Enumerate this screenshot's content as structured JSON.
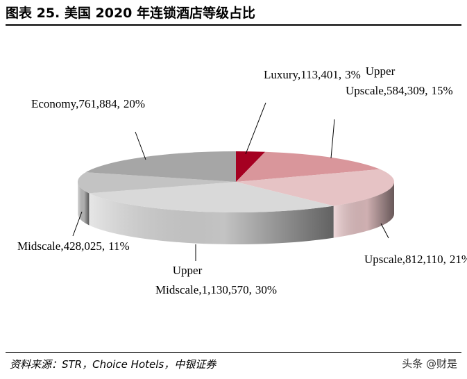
{
  "title": "图表 25. 美国 2020 年连锁酒店等级占比",
  "source": "资料来源：STR，Choice Hotels，中银证券",
  "watermark": "头条 @财是",
  "chart_data": {
    "type": "pie3d",
    "categories": [
      "Luxury",
      "Upper Upscale",
      "Upscale",
      "Upper Midscale",
      "Midscale",
      "Economy"
    ],
    "values": [
      113401,
      584309,
      812110,
      1130570,
      428025,
      761884
    ],
    "value_labels": [
      "113,401",
      "584,309",
      "812,110",
      "1,130,570",
      "428,025",
      "761,884"
    ],
    "percents": [
      3,
      15,
      21,
      30,
      11,
      20
    ],
    "percent_labels": [
      "3%",
      "15%",
      "21%",
      "30%",
      "11%",
      "20%"
    ],
    "separator": ",",
    "colors": [
      "#a50021",
      "#d9969b",
      "#e6c3c5",
      "#d9d9d9",
      "#c3c3c3",
      "#a6a6a6"
    ]
  }
}
